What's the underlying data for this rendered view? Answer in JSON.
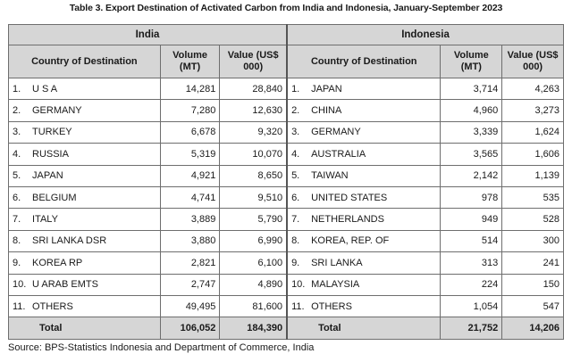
{
  "title": "Table 3. Export Destination of Activated Carbon from India and Indonesia, January-September 2023",
  "groups": {
    "india": "India",
    "indonesia": "Indonesia"
  },
  "headers": {
    "country": "Country of Destination",
    "volume": "Volume (MT)",
    "value": "Value (US$ 000)"
  },
  "india": [
    {
      "rank": "1.",
      "country": "U S A",
      "volume": "14,281",
      "value": "28,840"
    },
    {
      "rank": "2.",
      "country": "GERMANY",
      "volume": "7,280",
      "value": "12,630"
    },
    {
      "rank": "3.",
      "country": "TURKEY",
      "volume": "6,678",
      "value": "9,320"
    },
    {
      "rank": "4.",
      "country": "RUSSIA",
      "volume": "5,319",
      "value": "10,070"
    },
    {
      "rank": "5.",
      "country": "JAPAN",
      "volume": "4,921",
      "value": "8,650"
    },
    {
      "rank": "6.",
      "country": "BELGIUM",
      "volume": "4,741",
      "value": "9,510"
    },
    {
      "rank": "7.",
      "country": "ITALY",
      "volume": "3,889",
      "value": "5,790"
    },
    {
      "rank": "8.",
      "country": "SRI LANKA DSR",
      "volume": "3,880",
      "value": "6,990"
    },
    {
      "rank": "9.",
      "country": "KOREA RP",
      "volume": "2,821",
      "value": "6,100"
    },
    {
      "rank": "10.",
      "country": "U ARAB EMTS",
      "volume": "2,747",
      "value": "4,890"
    },
    {
      "rank": "11.",
      "country": "OTHERS",
      "volume": "49,495",
      "value": "81,600"
    }
  ],
  "indonesia": [
    {
      "rank": "1.",
      "country": "JAPAN",
      "volume": "3,714",
      "value": "4,263"
    },
    {
      "rank": "2.",
      "country": "CHINA",
      "volume": "4,960",
      "value": "3,273"
    },
    {
      "rank": "3.",
      "country": "GERMANY",
      "volume": "3,339",
      "value": "1,624"
    },
    {
      "rank": "4.",
      "country": "AUSTRALIA",
      "volume": "3,565",
      "value": "1,606"
    },
    {
      "rank": "5.",
      "country": "TAIWAN",
      "volume": "2,142",
      "value": "1,139"
    },
    {
      "rank": "6.",
      "country": "UNITED STATES",
      "volume": "978",
      "value": "535"
    },
    {
      "rank": "7.",
      "country": "NETHERLANDS",
      "volume": "949",
      "value": "528"
    },
    {
      "rank": "8.",
      "country": "KOREA, REP. OF",
      "volume": "514",
      "value": "300"
    },
    {
      "rank": "9.",
      "country": "SRI LANKA",
      "volume": "313",
      "value": "241"
    },
    {
      "rank": "10.",
      "country": "MALAYSIA",
      "volume": "224",
      "value": "150"
    },
    {
      "rank": "11.",
      "country": "OTHERS",
      "volume": "1,054",
      "value": "547"
    }
  ],
  "totals": {
    "label": "Total",
    "india_volume": "106,052",
    "india_value": "184,390",
    "indonesia_volume": "21,752",
    "indonesia_value": "14,206"
  },
  "source": "Source: BPS-Statistics Indonesia and Department of Commerce, India"
}
